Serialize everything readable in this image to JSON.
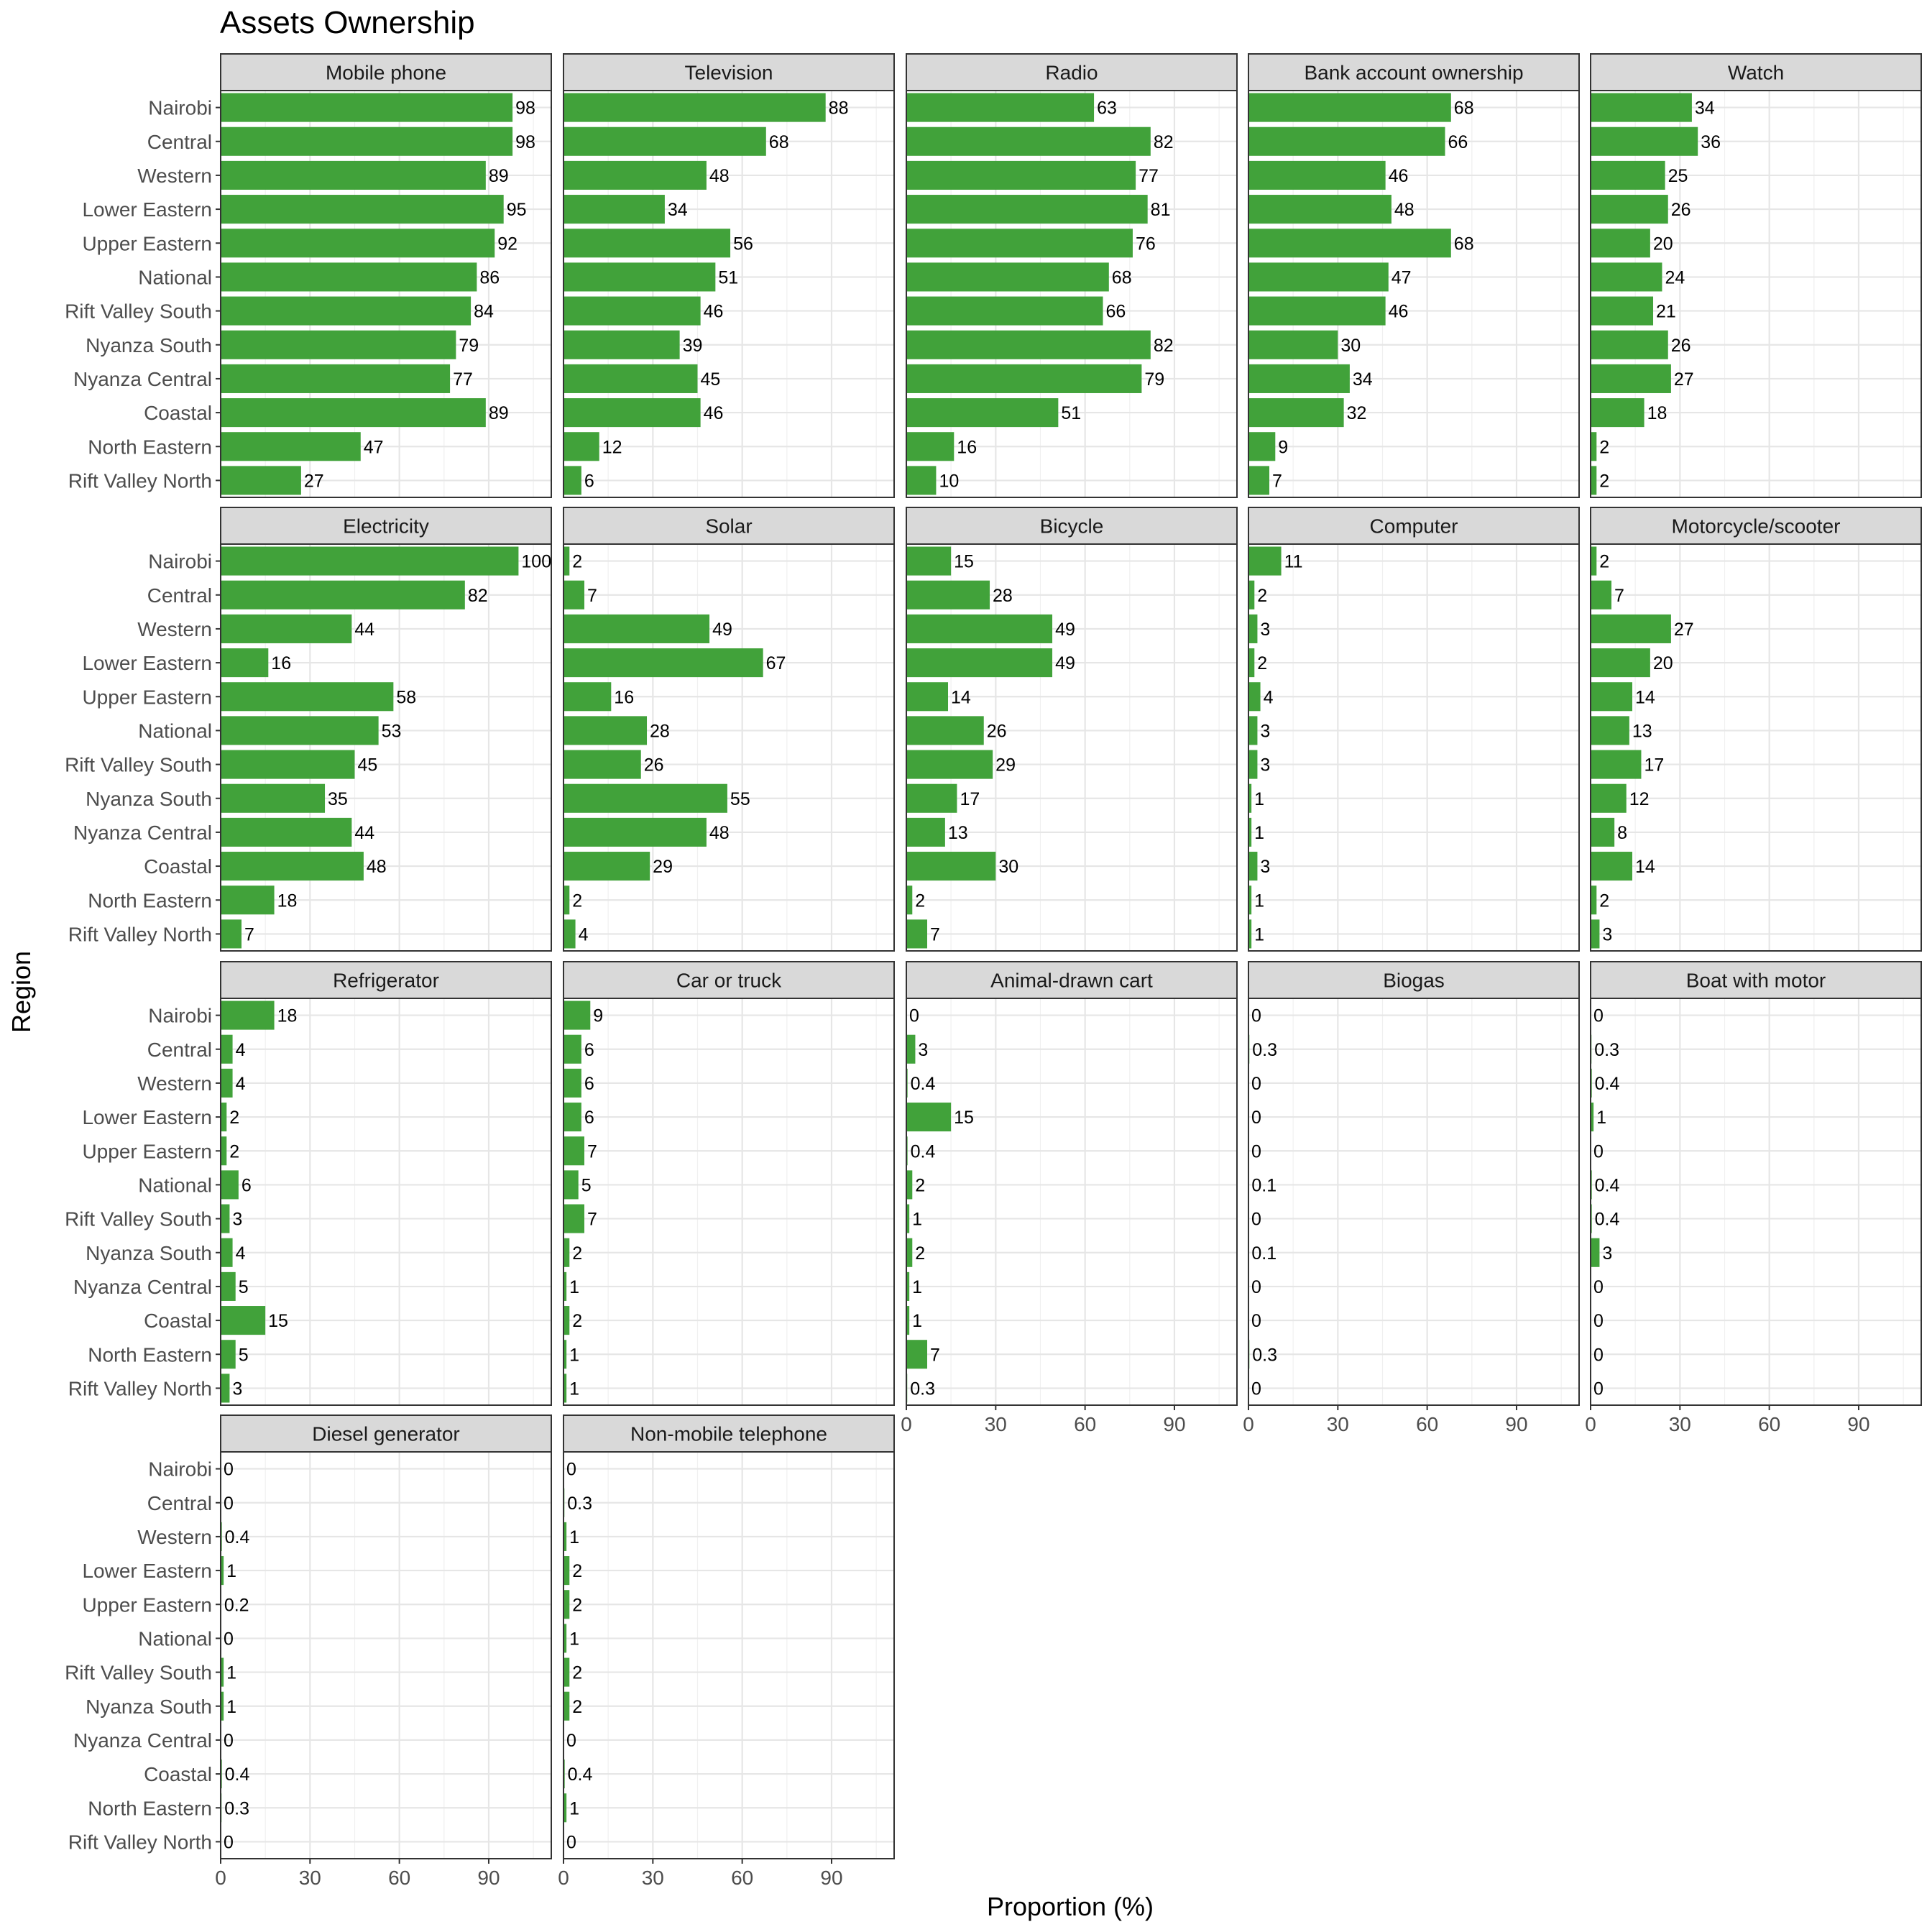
{
  "chart_data": {
    "type": "bar",
    "orientation": "horizontal",
    "layout": "facets",
    "title": "Assets Ownership",
    "xlabel": "Proportion (%)",
    "ylabel": "Region",
    "xlim": [
      0,
      111
    ],
    "xticks": [
      0,
      30,
      60,
      90
    ],
    "grid": true,
    "bar_color": "#41a23a",
    "strip_color": "#d9d9d9",
    "categories": [
      "Nairobi",
      "Central",
      "Western",
      "Lower Eastern",
      "Upper Eastern",
      "National",
      "Rift Valley South",
      "Nyanza South",
      "Nyanza Central",
      "Coastal",
      "North Eastern",
      "Rift Valley North"
    ],
    "series": [
      {
        "name": "Mobile phone",
        "values": [
          98,
          98,
          89,
          95,
          92,
          86,
          84,
          79,
          77,
          89,
          47,
          27
        ],
        "labels": [
          "98",
          "98",
          "89",
          "95",
          "92",
          "86",
          "84",
          "79",
          "77",
          "89",
          "47",
          "27"
        ]
      },
      {
        "name": "Television",
        "values": [
          88,
          68,
          48,
          34,
          56,
          51,
          46,
          39,
          45,
          46,
          12,
          6
        ],
        "labels": [
          "88",
          "68",
          "48",
          "34",
          "56",
          "51",
          "46",
          "39",
          "45",
          "46",
          "12",
          "6"
        ]
      },
      {
        "name": "Radio",
        "values": [
          63,
          82,
          77,
          81,
          76,
          68,
          66,
          82,
          79,
          51,
          16,
          10
        ],
        "labels": [
          "63",
          "82",
          "77",
          "81",
          "76",
          "68",
          "66",
          "82",
          "79",
          "51",
          "16",
          "10"
        ]
      },
      {
        "name": "Bank account ownership",
        "values": [
          68,
          66,
          46,
          48,
          68,
          47,
          46,
          30,
          34,
          32,
          9,
          7
        ],
        "labels": [
          "68",
          "66",
          "46",
          "48",
          "68",
          "47",
          "46",
          "30",
          "34",
          "32",
          "9",
          "7"
        ]
      },
      {
        "name": "Watch",
        "values": [
          34,
          36,
          25,
          26,
          20,
          24,
          21,
          26,
          27,
          18,
          2,
          2
        ],
        "labels": [
          "34",
          "36",
          "25",
          "26",
          "20",
          "24",
          "21",
          "26",
          "27",
          "18",
          "2",
          "2"
        ]
      },
      {
        "name": "Electricity",
        "values": [
          100,
          82,
          44,
          16,
          58,
          53,
          45,
          35,
          44,
          48,
          18,
          7
        ],
        "labels": [
          "100",
          "82",
          "44",
          "16",
          "58",
          "53",
          "45",
          "35",
          "44",
          "48",
          "18",
          "7"
        ]
      },
      {
        "name": "Solar",
        "values": [
          2,
          7,
          49,
          67,
          16,
          28,
          26,
          55,
          48,
          29,
          2,
          4
        ],
        "labels": [
          "2",
          "7",
          "49",
          "67",
          "16",
          "28",
          "26",
          "55",
          "48",
          "29",
          "2",
          "4"
        ]
      },
      {
        "name": "Bicycle",
        "values": [
          15,
          28,
          49,
          49,
          14,
          26,
          29,
          17,
          13,
          30,
          2,
          7
        ],
        "labels": [
          "15",
          "28",
          "49",
          "49",
          "14",
          "26",
          "29",
          "17",
          "13",
          "30",
          "2",
          "7"
        ]
      },
      {
        "name": "Computer",
        "values": [
          11,
          2,
          3,
          2,
          4,
          3,
          3,
          1,
          1,
          3,
          1,
          1
        ],
        "labels": [
          "11",
          "2",
          "3",
          "2",
          "4",
          "3",
          "3",
          "1",
          "1",
          "3",
          "1",
          "1"
        ]
      },
      {
        "name": "Motorcycle/scooter",
        "values": [
          2,
          7,
          27,
          20,
          14,
          13,
          17,
          12,
          8,
          14,
          2,
          3
        ],
        "labels": [
          "2",
          "7",
          "27",
          "20",
          "14",
          "13",
          "17",
          "12",
          "8",
          "14",
          "2",
          "3"
        ]
      },
      {
        "name": "Refrigerator",
        "values": [
          18,
          4,
          4,
          2,
          2,
          6,
          3,
          4,
          5,
          15,
          5,
          3
        ],
        "labels": [
          "18",
          "4",
          "4",
          "2",
          "2",
          "6",
          "3",
          "4",
          "5",
          "15",
          "5",
          "3"
        ]
      },
      {
        "name": "Car or truck",
        "values": [
          9,
          6,
          6,
          6,
          7,
          5,
          7,
          2,
          1,
          2,
          1,
          1
        ],
        "labels": [
          "9",
          "6",
          "6",
          "6",
          "7",
          "5",
          "7",
          "2",
          "1",
          "2",
          "1",
          "1"
        ]
      },
      {
        "name": "Animal-drawn cart",
        "values": [
          0,
          3,
          0.4,
          15,
          0.4,
          2,
          1,
          2,
          1,
          1,
          7,
          0.3
        ],
        "labels": [
          "0",
          "3",
          "0.4",
          "15",
          "0.4",
          "2",
          "1",
          "2",
          "1",
          "1",
          "7",
          "0.3"
        ]
      },
      {
        "name": "Biogas",
        "values": [
          0,
          0.3,
          0,
          0,
          0,
          0.1,
          0,
          0.1,
          0,
          0,
          0.3,
          0
        ],
        "labels": [
          "0",
          "0.3",
          "0",
          "0",
          "0",
          "0.1",
          "0",
          "0.1",
          "0",
          "0",
          "0.3",
          "0"
        ]
      },
      {
        "name": "Boat with motor",
        "values": [
          0,
          0.3,
          0.4,
          1,
          0,
          0.4,
          0.4,
          3,
          0,
          0,
          0,
          0
        ],
        "labels": [
          "0",
          "0.3",
          "0.4",
          "1",
          "0",
          "0.4",
          "0.4",
          "3",
          "0",
          "0",
          "0",
          "0"
        ]
      },
      {
        "name": "Diesel generator",
        "values": [
          0,
          0,
          0.4,
          1,
          0.2,
          0,
          1,
          1,
          0,
          0.4,
          0.3,
          0
        ],
        "labels": [
          "0",
          "0",
          "0.4",
          "1",
          "0.2",
          "0",
          "1",
          "1",
          "0",
          "0.4",
          "0.3",
          "0"
        ]
      },
      {
        "name": "Non-mobile telephone",
        "values": [
          0,
          0.3,
          1,
          2,
          2,
          1,
          2,
          2,
          0,
          0.4,
          1,
          0
        ],
        "labels": [
          "0",
          "0.3",
          "1",
          "2",
          "2",
          "1",
          "2",
          "2",
          "0",
          "0.4",
          "1",
          "0"
        ]
      }
    ]
  }
}
